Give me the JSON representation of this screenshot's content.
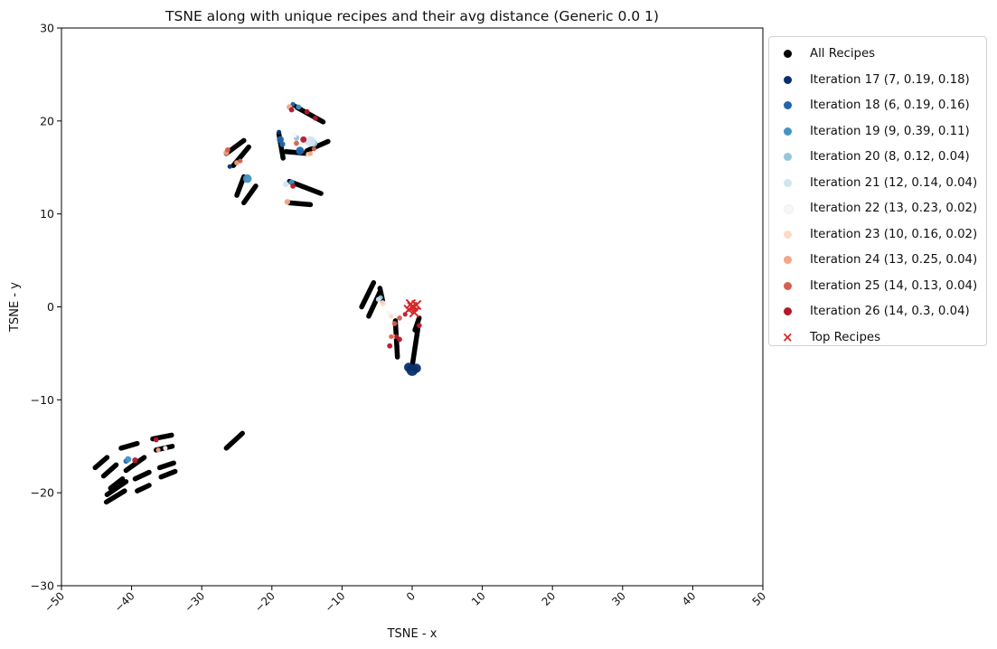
{
  "chart_data": {
    "type": "scatter",
    "title": "TSNE along with unique recipes and their avg distance (Generic 0.0 1)",
    "xlabel": "TSNE - x",
    "ylabel": "TSNE - y",
    "xlim": [
      -50,
      50
    ],
    "ylim": [
      -30,
      30
    ],
    "xticks": [
      "−50",
      "−40",
      "−30",
      "−20",
      "−10",
      "0",
      "10",
      "20",
      "30",
      "40",
      "50"
    ],
    "yticks": [
      "−30",
      "−20",
      "−10",
      "0",
      "10",
      "20",
      "30"
    ],
    "grid": false,
    "legend_position": "outside-right",
    "segments": [
      {
        "from": [
          -45.2,
          -17.3
        ],
        "to": [
          -43.5,
          -16.2
        ]
      },
      {
        "from": [
          -44.0,
          -18.2
        ],
        "to": [
          -42.2,
          -17.0
        ]
      },
      {
        "from": [
          -43.6,
          -21.0
        ],
        "to": [
          -41.0,
          -19.8
        ]
      },
      {
        "from": [
          -43.5,
          -20.2
        ],
        "to": [
          -40.8,
          -18.8
        ]
      },
      {
        "from": [
          -43.0,
          -19.5
        ],
        "to": [
          -41.3,
          -18.5
        ]
      },
      {
        "from": [
          -41.5,
          -15.2
        ],
        "to": [
          -39.2,
          -14.7
        ]
      },
      {
        "from": [
          -40.8,
          -17.6
        ],
        "to": [
          -38.2,
          -16.2
        ]
      },
      {
        "from": [
          -39.2,
          -19.8
        ],
        "to": [
          -37.5,
          -19.2
        ]
      },
      {
        "from": [
          -39.5,
          -18.5
        ],
        "to": [
          -37.5,
          -17.8
        ]
      },
      {
        "from": [
          -37.0,
          -14.2
        ],
        "to": [
          -34.3,
          -13.8
        ]
      },
      {
        "from": [
          -36.5,
          -15.4
        ],
        "to": [
          -34.2,
          -15.0
        ]
      },
      {
        "from": [
          -36.0,
          -17.3
        ],
        "to": [
          -34.0,
          -16.8
        ]
      },
      {
        "from": [
          -35.8,
          -18.3
        ],
        "to": [
          -33.8,
          -17.7
        ]
      },
      {
        "from": [
          -26.5,
          -15.2
        ],
        "to": [
          -24.2,
          -13.6
        ]
      },
      {
        "from": [
          -26.5,
          16.5
        ],
        "to": [
          -24.0,
          17.9
        ]
      },
      {
        "from": [
          -25.5,
          15.2
        ],
        "to": [
          -23.3,
          17.2
        ]
      },
      {
        "from": [
          -25.0,
          12.0
        ],
        "to": [
          -24.0,
          14.0
        ]
      },
      {
        "from": [
          -24.0,
          11.2
        ],
        "to": [
          -22.3,
          13.0
        ]
      },
      {
        "from": [
          -19.0,
          18.6
        ],
        "to": [
          -18.4,
          16.0
        ]
      },
      {
        "from": [
          -17.5,
          13.5
        ],
        "to": [
          -13.0,
          12.2
        ]
      },
      {
        "from": [
          -17.5,
          11.2
        ],
        "to": [
          -14.5,
          11.0
        ]
      },
      {
        "from": [
          -18.0,
          16.7
        ],
        "to": [
          -14.8,
          16.5
        ]
      },
      {
        "from": [
          -15.0,
          16.8
        ],
        "to": [
          -12.0,
          17.8
        ]
      },
      {
        "from": [
          -17.0,
          21.7
        ],
        "to": [
          -12.7,
          19.9
        ]
      },
      {
        "from": [
          -7.2,
          0.0
        ],
        "to": [
          -5.5,
          2.6
        ]
      },
      {
        "from": [
          -6.2,
          -1.0
        ],
        "to": [
          -4.6,
          1.6
        ]
      },
      {
        "from": [
          -4.6,
          2.0
        ],
        "to": [
          -4.2,
          0.6
        ]
      },
      {
        "from": [
          -2.1,
          -5.4
        ],
        "to": [
          -2.4,
          -1.5
        ]
      },
      {
        "from": [
          0.0,
          -6.4
        ],
        "to": [
          0.8,
          -2.4
        ]
      },
      {
        "from": [
          0.4,
          -2.5
        ],
        "to": [
          1.0,
          -1.2
        ]
      }
    ],
    "series": [
      {
        "name": "Iteration 17 (7, 0.19, 0.18)",
        "color": "#08306b",
        "points": [
          [
            0.0,
            -6.8,
            2.0
          ],
          [
            -0.5,
            -6.5,
            1.6
          ],
          [
            0.6,
            -6.6,
            1.6
          ],
          [
            -26.0,
            15.1,
            0.8
          ],
          [
            -19.0,
            18.8,
            0.8
          ]
        ]
      },
      {
        "name": "Iteration 18 (6, 0.19, 0.16)",
        "color": "#2166ac",
        "points": [
          [
            -18.8,
            18.0,
            1.2
          ],
          [
            -16.0,
            16.8,
            1.4
          ],
          [
            -18.5,
            17.5,
            1.0
          ],
          [
            -40.8,
            -16.6,
            0.9
          ],
          [
            -17.0,
            21.8,
            0.8
          ]
        ]
      },
      {
        "name": "Iteration 19 (9, 0.39, 0.11)",
        "color": "#4393c3",
        "points": [
          [
            -23.5,
            13.8,
            1.5
          ],
          [
            -17.2,
            13.4,
            1.0
          ],
          [
            -16.2,
            21.5,
            0.9
          ],
          [
            -40.5,
            -16.4,
            1.1
          ]
        ]
      },
      {
        "name": "Iteration 20 (8, 0.12, 0.04)",
        "color": "#92c5de",
        "points": [
          [
            -14.0,
            17.6,
            1.2
          ],
          [
            -16.5,
            18.2,
            1.0
          ],
          [
            -4.5,
            1.0,
            0.8
          ]
        ]
      },
      {
        "name": "Iteration 21 (12, 0.14, 0.04)",
        "color": "#d1e5f0",
        "points": [
          [
            -14.5,
            17.8,
            1.8
          ],
          [
            -18.0,
            13.2,
            1.0
          ],
          [
            -4.8,
            0.8,
            0.9
          ],
          [
            -17.0,
            21.2,
            0.9
          ]
        ]
      },
      {
        "name": "Iteration 22 (13, 0.23, 0.02)",
        "color": "#f7f7f7",
        "points": [
          [
            -16.8,
            18.5,
            1.0
          ],
          [
            -35.2,
            -15.2,
            0.8
          ],
          [
            -3.5,
            -0.6,
            0.8
          ]
        ]
      },
      {
        "name": "Iteration 23 (10, 0.16, 0.02)",
        "color": "#fddbc7",
        "points": [
          [
            -4.2,
            0.4,
            1.0
          ],
          [
            -14.8,
            16.4,
            0.9
          ],
          [
            -3.0,
            -1.0,
            0.8
          ]
        ]
      },
      {
        "name": "Iteration 24 (13, 0.25, 0.04)",
        "color": "#f4a582",
        "points": [
          [
            -26.5,
            16.6,
            1.0
          ],
          [
            -25.0,
            15.5,
            0.9
          ],
          [
            -17.8,
            11.3,
            1.0
          ],
          [
            -17.5,
            21.5,
            1.0
          ],
          [
            -14.5,
            16.5,
            0.8
          ],
          [
            -36.2,
            -15.4,
            0.8
          ],
          [
            -2.6,
            -3.2,
            0.8
          ]
        ]
      },
      {
        "name": "Iteration 25 (14, 0.13, 0.04)",
        "color": "#d6604d",
        "points": [
          [
            -26.3,
            16.9,
            0.9
          ],
          [
            -24.5,
            15.7,
            0.8
          ],
          [
            -16.5,
            17.6,
            0.9
          ],
          [
            -2.5,
            -1.8,
            0.9
          ],
          [
            -3.0,
            -3.2,
            0.8
          ],
          [
            -1.8,
            -1.2,
            0.9
          ],
          [
            -14.0,
            17.0,
            0.8
          ]
        ]
      },
      {
        "name": "Iteration 26 (14, 0.3, 0.04)",
        "color": "#b2182b",
        "points": [
          [
            -17.2,
            21.2,
            0.9
          ],
          [
            -15.0,
            21.0,
            0.9
          ],
          [
            -13.8,
            20.3,
            0.9
          ],
          [
            -15.5,
            18.0,
            1.1
          ],
          [
            -17.0,
            13.0,
            0.9
          ],
          [
            -39.5,
            -16.5,
            1.0
          ],
          [
            -36.5,
            -14.3,
            0.9
          ],
          [
            -3.2,
            -4.2,
            0.9
          ],
          [
            -1.8,
            -3.5,
            0.9
          ],
          [
            -2.2,
            -3.2,
            0.8
          ],
          [
            1.0,
            -2.0,
            0.9
          ],
          [
            -1.0,
            -0.8,
            0.8
          ],
          [
            0.5,
            -0.3,
            0.8
          ]
        ]
      }
    ],
    "top_recipes": {
      "name": "Top Recipes",
      "color": "#d62728",
      "points": [
        [
          0.0,
          0.0
        ],
        [
          -0.5,
          -0.3
        ],
        [
          0.3,
          -0.6
        ],
        [
          -0.2,
          0.3
        ],
        [
          0.6,
          0.2
        ]
      ]
    },
    "all_recipes_label": "All Recipes",
    "all_recipes_color": "#000000"
  }
}
